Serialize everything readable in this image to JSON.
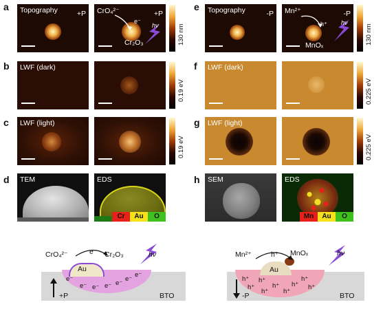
{
  "panel_letters": [
    "a",
    "b",
    "c",
    "d",
    "e",
    "f",
    "g",
    "h"
  ],
  "left": {
    "a1_title": "Topography",
    "a1_pol": "+P",
    "a2_ion": "CrO₄²⁻",
    "a2_pol": "+P",
    "a2_e": "e⁻",
    "a2_prod": "Cr₂O₃",
    "a2_hv": "hν",
    "b_title": "LWF (dark)",
    "c_title": "LWF (light)",
    "d1_title": "TEM",
    "d2_title": "EDS",
    "cbar_a": "130 nm",
    "cbar_b": "0.19 eV",
    "cbar_c": "0.19 eV",
    "eds_cr": "Cr",
    "eds_au": "Au",
    "eds_o": "O"
  },
  "right": {
    "e1_title": "Topography",
    "e1_pol": "-P",
    "e2_ion": "Mn²⁺",
    "e2_pol": "-P",
    "e2_h": "h⁺",
    "e2_prod": "MnOₓ",
    "e2_hv": "hν",
    "f_title": "LWF (dark)",
    "g_title": "LWF (light)",
    "h1_title": "SEM",
    "h2_title": "EDS",
    "cbar_e": "130 nm",
    "cbar_f": "0.225 eV",
    "cbar_g": "0.225 eV",
    "eds_mn": "Mn",
    "eds_au": "Au",
    "eds_o": "O"
  },
  "schem_left": {
    "ion": "CrO₄²⁻",
    "e": "e⁻",
    "prod": "Cr₂O₃",
    "hv": "hν",
    "au": "Au",
    "pol": "+P",
    "sub": "BTO",
    "carriers": [
      "e⁻",
      "e⁻",
      "e⁻",
      "e⁻",
      "e⁻",
      "e⁻",
      "e⁻"
    ]
  },
  "schem_right": {
    "ion": "Mn²⁺",
    "h": "h⁺",
    "prod": "MnOₓ",
    "hv": "hν",
    "au": "Au",
    "pol": "-P",
    "sub": "BTO",
    "carriers": [
      "h⁺",
      "h⁺",
      "h⁺",
      "h⁺",
      "h⁺",
      "h⁺",
      "h⁺",
      "h⁺",
      "h⁺"
    ]
  },
  "colors": {
    "cr_red": "#e8201a",
    "au_yellow": "#f5e21a",
    "o_green": "#3ec11f",
    "mn_red": "#e8201a",
    "purple": "#8a4ad8",
    "pink_region": "#f0a6b6",
    "lilac_region": "#e3a3e0"
  }
}
